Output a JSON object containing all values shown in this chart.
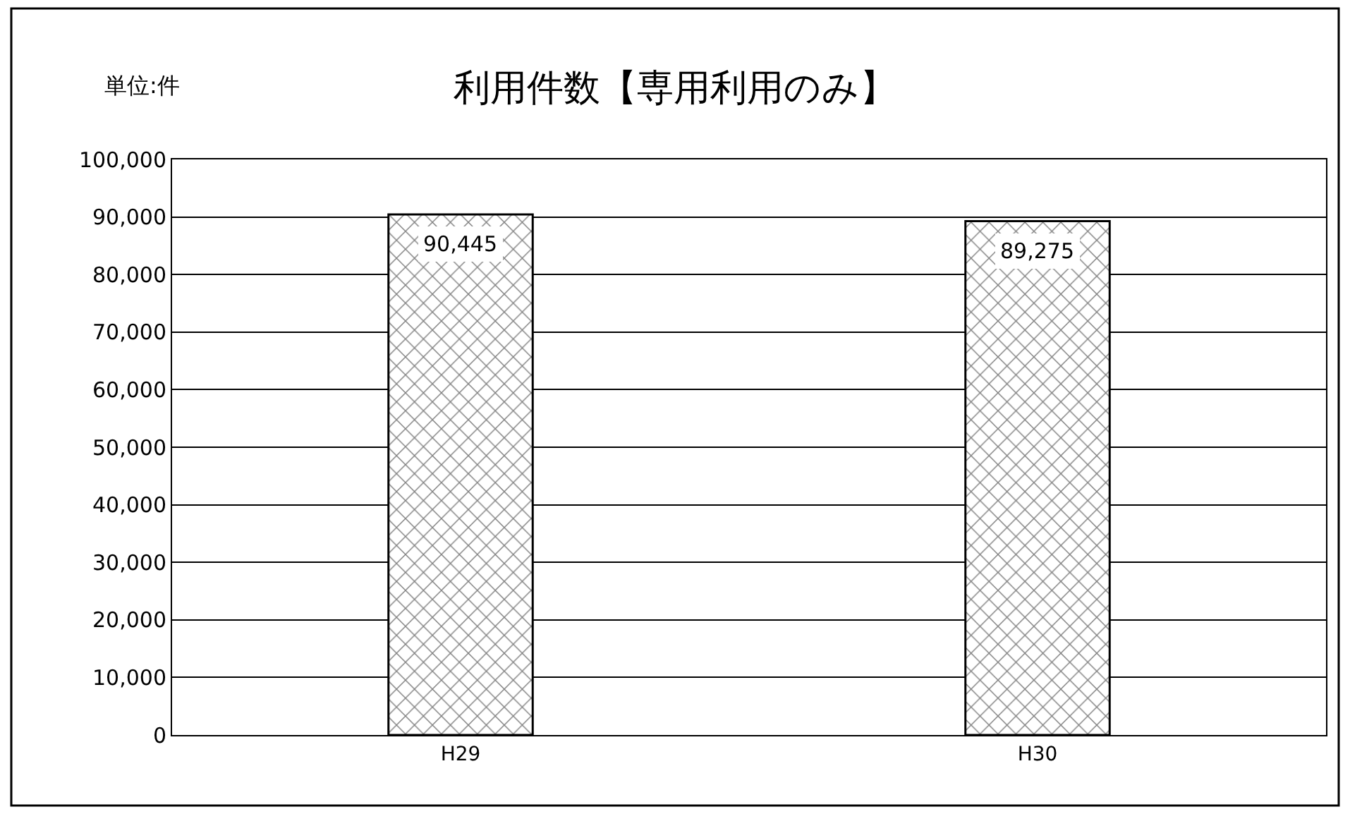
{
  "chart_data": {
    "type": "bar",
    "title": "利用件数【専用利用のみ】",
    "annotations": [
      "単位:件"
    ],
    "categories": [
      "H29",
      "H30"
    ],
    "values": [
      90445,
      89275
    ],
    "color": "#000000",
    "ylim": [
      0,
      100000
    ],
    "value_labels": [
      "90,445",
      "89,275"
    ],
    "yticks": [
      0,
      {
        "value": 10000,
        "label": "10,000"
      },
      {
        "value": 20000,
        "label": "20,000"
      },
      {
        "value": 30000,
        "label": "30,000"
      },
      {
        "value": 40000,
        "label": "40,000"
      },
      {
        "value": 50000,
        "label": "50,000"
      },
      {
        "value": 60000,
        "label": "60,000"
      },
      {
        "value": 70000,
        "label": "70,000"
      },
      {
        "value": 80000,
        "label": "80,000"
      },
      {
        "value": 90000,
        "label": "90,000"
      },
      {
        "value": 100000,
        "label": "100,000"
      }
    ],
    "grid": "y",
    "legend": false
  }
}
